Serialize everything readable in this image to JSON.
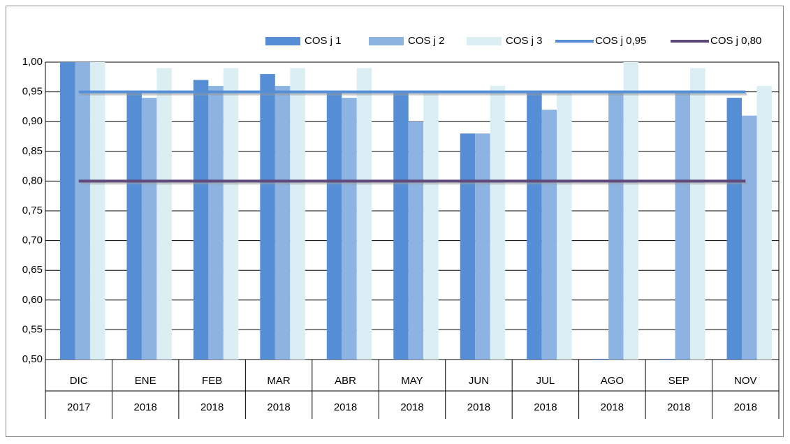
{
  "chart_data": {
    "type": "bar",
    "categories": [
      [
        "DIC",
        "2017"
      ],
      [
        "ENE",
        "2018"
      ],
      [
        "FEB",
        "2018"
      ],
      [
        "MAR",
        "2018"
      ],
      [
        "ABR",
        "2018"
      ],
      [
        "MAY",
        "2018"
      ],
      [
        "JUN",
        "2018"
      ],
      [
        "JUL",
        "2018"
      ],
      [
        "AGO",
        "2018"
      ],
      [
        "SEP",
        "2018"
      ],
      [
        "NOV",
        "2018"
      ]
    ],
    "series": [
      {
        "name": "COS j 1",
        "type": "bar",
        "color": "#558ed5",
        "values": [
          1.0,
          0.95,
          0.97,
          0.98,
          0.95,
          0.95,
          0.88,
          0.95,
          0.5,
          0.5,
          0.94
        ]
      },
      {
        "name": "COS j 2",
        "type": "bar",
        "color": "#8db3e2",
        "values": [
          1.0,
          0.94,
          0.96,
          0.96,
          0.94,
          0.9,
          0.88,
          0.92,
          0.95,
          0.95,
          0.91
        ]
      },
      {
        "name": "COS j 3",
        "type": "bar",
        "color": "#dbeef4",
        "values": [
          1.0,
          0.99,
          0.99,
          0.99,
          0.99,
          0.95,
          0.96,
          0.95,
          1.0,
          0.99,
          0.96
        ]
      },
      {
        "name": "COS j 0,95",
        "type": "line",
        "color": "#558ed5",
        "values": [
          0.95,
          0.95,
          0.95,
          0.95,
          0.95,
          0.95,
          0.95,
          0.95,
          0.95,
          0.95,
          0.95
        ]
      },
      {
        "name": "COS j 0,80",
        "type": "line",
        "color": "#604a7b",
        "values": [
          0.8,
          0.8,
          0.8,
          0.8,
          0.8,
          0.8,
          0.8,
          0.8,
          0.8,
          0.8,
          0.8
        ]
      }
    ],
    "ylim": [
      0.5,
      1.0
    ],
    "yticks": [
      {
        "value": 0.5,
        "label": "0,50"
      },
      {
        "value": 0.55,
        "label": "0,55"
      },
      {
        "value": 0.6,
        "label": "0,60"
      },
      {
        "value": 0.65,
        "label": "0,65"
      },
      {
        "value": 0.7,
        "label": "0,70"
      },
      {
        "value": 0.75,
        "label": "0,75"
      },
      {
        "value": 0.8,
        "label": "0,80"
      },
      {
        "value": 0.85,
        "label": "0,85"
      },
      {
        "value": 0.9,
        "label": "0,90"
      },
      {
        "value": 0.95,
        "label": "0,95"
      },
      {
        "value": 1.0,
        "label": "1,00"
      }
    ],
    "grid": true,
    "legend": "top"
  }
}
